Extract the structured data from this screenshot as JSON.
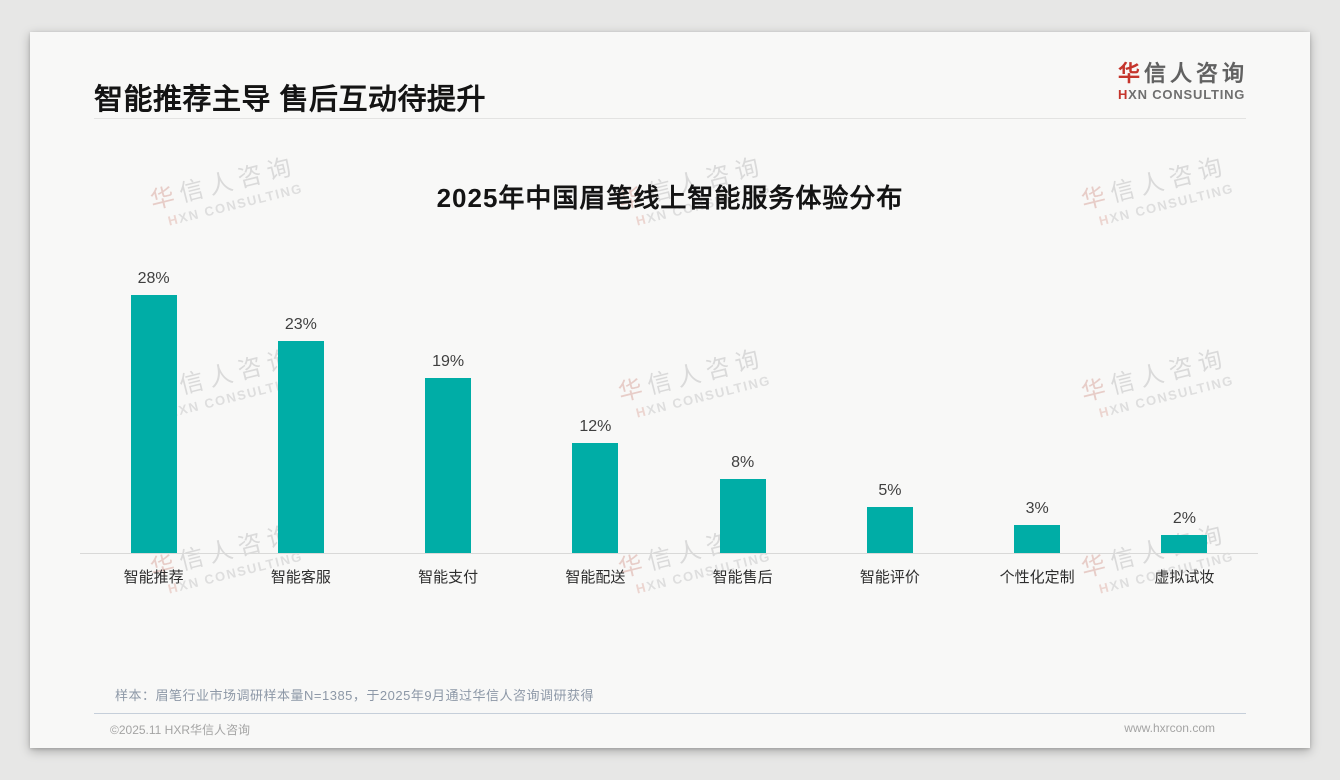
{
  "header": {
    "title": "智能推荐主导 售后互动待提升"
  },
  "brand": {
    "cn_first": "华",
    "cn_rest": "信人咨询",
    "en_first": "H",
    "en_rest": "XN CONSULTING",
    "red_color": "#c5352c"
  },
  "chart_data": {
    "type": "bar",
    "title": "2025年中国眉笔线上智能服务体验分布",
    "categories": [
      "智能推荐",
      "智能客服",
      "智能支付",
      "智能配送",
      "智能售后",
      "智能评价",
      "个性化定制",
      "虚拟试妆"
    ],
    "values": [
      28,
      23,
      19,
      12,
      8,
      5,
      3,
      2
    ],
    "unit": "%",
    "value_labels": [
      "28%",
      "23%",
      "19%",
      "12%",
      "8%",
      "5%",
      "3%",
      "2%"
    ],
    "bar_color": "#00ada6",
    "xlabel": "",
    "ylabel": "",
    "ylim": [
      0,
      30
    ],
    "grid": false,
    "legend": false
  },
  "watermark": {
    "text": "华信人咨询 HXN CONSULTING"
  },
  "footer": {
    "note": "样本：眉笔行业市场调研样本量N=1385，于2025年9月通过华信人咨询调研获得",
    "copyright": "©2025.11 HXR华信人咨询",
    "website": "www.hxrcon.com"
  }
}
